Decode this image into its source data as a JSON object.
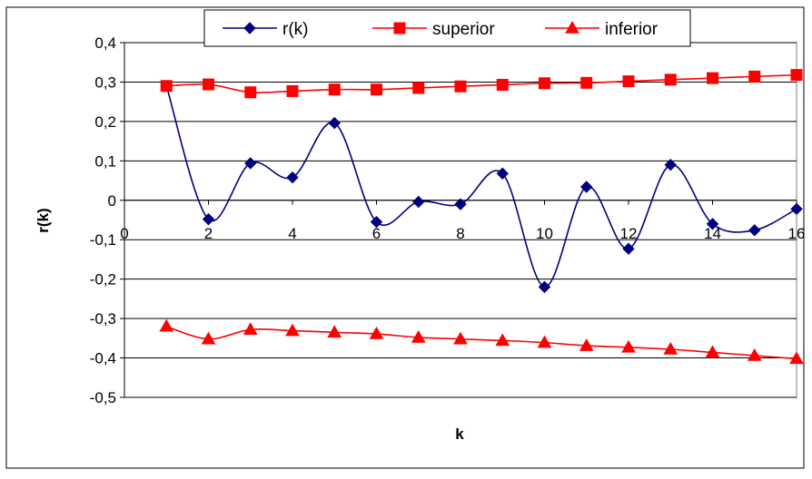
{
  "chart_data": {
    "type": "line",
    "xlabel": "k",
    "ylabel": "r(k)",
    "xlim": [
      0,
      16
    ],
    "ylim": [
      -0.5,
      0.4
    ],
    "x_ticks": [
      "0",
      "2",
      "4",
      "6",
      "8",
      "10",
      "12",
      "14",
      "16"
    ],
    "y_ticks": [
      "0,4",
      "0,3",
      "0,2",
      "0,1",
      "0",
      "-0,1",
      "-0,2",
      "-0,3",
      "-0,4",
      "-0,5"
    ],
    "grid": "horizontal",
    "legend_position": "top",
    "x": [
      1,
      2,
      3,
      4,
      5,
      6,
      7,
      8,
      9,
      10,
      11,
      12,
      13,
      14,
      15,
      16
    ],
    "series": [
      {
        "name": "r(k)",
        "marker": "diamond",
        "color": "#000080",
        "values": [
          0.29,
          -0.048,
          0.094,
          0.058,
          0.196,
          -0.055,
          -0.004,
          -0.01,
          0.068,
          -0.22,
          0.034,
          -0.123,
          0.09,
          -0.06,
          -0.076,
          -0.022
        ]
      },
      {
        "name": "superior",
        "marker": "square",
        "color": "#ff0000",
        "values": [
          0.29,
          0.294,
          0.274,
          0.277,
          0.281,
          0.281,
          0.285,
          0.289,
          0.293,
          0.297,
          0.298,
          0.302,
          0.306,
          0.31,
          0.314,
          0.318
        ]
      },
      {
        "name": "inferior",
        "marker": "triangle",
        "color": "#ff0000",
        "values": [
          -0.32,
          -0.352,
          -0.328,
          -0.331,
          -0.335,
          -0.339,
          -0.348,
          -0.352,
          -0.356,
          -0.361,
          -0.369,
          -0.373,
          -0.378,
          -0.386,
          -0.394,
          -0.402
        ]
      }
    ]
  }
}
